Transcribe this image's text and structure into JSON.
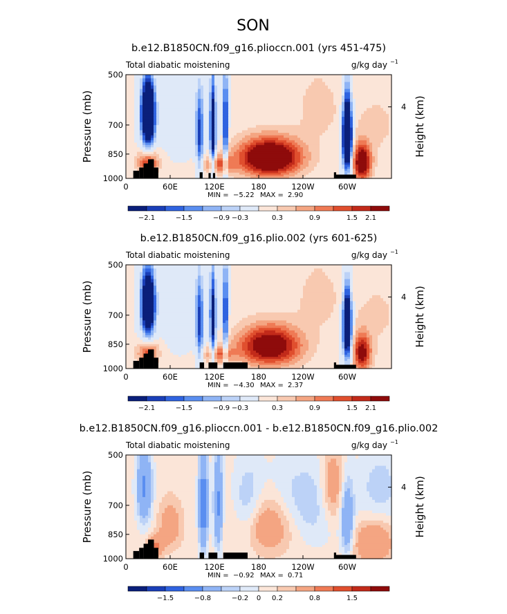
{
  "page_title": "SON",
  "colors": {
    "palette": [
      "#0a1f7a",
      "#1a3fb8",
      "#2f63e0",
      "#5a8ef0",
      "#8fb4f5",
      "#bcd2f7",
      "#dfe9f8",
      "#fbe5d8",
      "#f8c9b0",
      "#f4a582",
      "#ef7a55",
      "#e04f2e",
      "#c22a1a",
      "#8e0b0b"
    ],
    "land": "#000000"
  },
  "chart_data": [
    {
      "type": "heatmap",
      "title": "b.e12.B1850CN.f09_g16.plioccn.001 (yrs 451-475)",
      "left_label": "Total diabatic moistening",
      "units": "g/kg day",
      "units_exp": "−1",
      "ylabel": "Pressure (mb)",
      "y2label": "Height (km)",
      "y2ticks": [
        "4"
      ],
      "xticks": [
        "0",
        "60E",
        "120E",
        "180",
        "120W",
        "60W"
      ],
      "yticks": [
        "500",
        "700",
        "850",
        "1000"
      ],
      "xlim": [
        0,
        360
      ],
      "ylim": [
        1000,
        500
      ],
      "min_label": "MIN =",
      "min_value": "−5.22",
      "max_label": "MAX =",
      "max_value": "2.90",
      "colorbar_levels": [
        "−2.1",
        "−1.5",
        "−0.9",
        "−0.3",
        "0.3",
        "0.9",
        "1.5",
        "2.1"
      ],
      "features": [
        {
          "lon": 30,
          "p": 650,
          "value": -4.8,
          "slon": 9,
          "sp": 140
        },
        {
          "lon": 30,
          "p": 900,
          "value": 1.6,
          "slon": 14,
          "sp": 70
        },
        {
          "lon": 100,
          "p": 750,
          "value": -1.8,
          "slon": 5,
          "sp": 210
        },
        {
          "lon": 118,
          "p": 720,
          "value": -2.8,
          "slon": 4,
          "sp": 230
        },
        {
          "lon": 135,
          "p": 700,
          "value": -2.6,
          "slon": 3,
          "sp": 240
        },
        {
          "lon": 125,
          "p": 910,
          "value": 1.2,
          "slon": 20,
          "sp": 55
        },
        {
          "lon": 195,
          "p": 870,
          "value": 2.9,
          "slon": 42,
          "sp": 110
        },
        {
          "lon": 300,
          "p": 750,
          "value": -5.2,
          "slon": 6,
          "sp": 180
        },
        {
          "lon": 320,
          "p": 900,
          "value": 2.4,
          "slon": 12,
          "sp": 110
        },
        {
          "lon": 80,
          "p": 650,
          "value": -0.4,
          "slon": 40,
          "sp": 180
        },
        {
          "lon": 260,
          "p": 620,
          "value": 0.4,
          "slon": 30,
          "sp": 150
        },
        {
          "lon": 340,
          "p": 700,
          "value": 0.3,
          "slon": 40,
          "sp": 200
        }
      ],
      "land": [
        {
          "lon0": 10,
          "lon1": 18,
          "p0": 950
        },
        {
          "lon0": 18,
          "lon1": 24,
          "p0": 930
        },
        {
          "lon0": 24,
          "lon1": 30,
          "p0": 905
        },
        {
          "lon0": 30,
          "lon1": 38,
          "p0": 880
        },
        {
          "lon0": 38,
          "lon1": 44,
          "p0": 930
        },
        {
          "lon0": 100,
          "lon1": 104,
          "p0": 960
        },
        {
          "lon0": 112,
          "lon1": 115,
          "p0": 965
        },
        {
          "lon0": 118,
          "lon1": 121,
          "p0": 965
        },
        {
          "lon0": 282,
          "lon1": 285,
          "p0": 960
        },
        {
          "lon0": 285,
          "lon1": 312,
          "p0": 975
        }
      ]
    },
    {
      "type": "heatmap",
      "title": "b.e12.B1850CN.f09_g16.plio.002 (yrs 601-625)",
      "left_label": "Total diabatic moistening",
      "units": "g/kg day",
      "units_exp": "−1",
      "ylabel": "Pressure (mb)",
      "y2label": "Height (km)",
      "y2ticks": [
        "4"
      ],
      "xticks": [
        "0",
        "60E",
        "120E",
        "180",
        "120W",
        "60W"
      ],
      "yticks": [
        "500",
        "700",
        "850",
        "1000"
      ],
      "xlim": [
        0,
        360
      ],
      "ylim": [
        1000,
        500
      ],
      "min_label": "MIN =",
      "min_value": "−4.30",
      "max_label": "MAX =",
      "max_value": "2.37",
      "colorbar_levels": [
        "−2.1",
        "−1.5",
        "−0.9",
        "−0.3",
        "0.3",
        "0.9",
        "1.5",
        "2.1"
      ],
      "features": [
        {
          "lon": 30,
          "p": 650,
          "value": -4.3,
          "slon": 9,
          "sp": 140
        },
        {
          "lon": 30,
          "p": 900,
          "value": 1.4,
          "slon": 14,
          "sp": 70
        },
        {
          "lon": 100,
          "p": 750,
          "value": -1.8,
          "slon": 5,
          "sp": 210
        },
        {
          "lon": 118,
          "p": 720,
          "value": -2.4,
          "slon": 4,
          "sp": 230
        },
        {
          "lon": 135,
          "p": 700,
          "value": -2.4,
          "slon": 3,
          "sp": 240
        },
        {
          "lon": 125,
          "p": 910,
          "value": 1.1,
          "slon": 20,
          "sp": 55
        },
        {
          "lon": 195,
          "p": 860,
          "value": 2.4,
          "slon": 42,
          "sp": 115
        },
        {
          "lon": 300,
          "p": 750,
          "value": -4.0,
          "slon": 6,
          "sp": 180
        },
        {
          "lon": 320,
          "p": 900,
          "value": 2.0,
          "slon": 12,
          "sp": 110
        },
        {
          "lon": 80,
          "p": 650,
          "value": -0.5,
          "slon": 40,
          "sp": 180
        },
        {
          "lon": 260,
          "p": 620,
          "value": 0.4,
          "slon": 30,
          "sp": 150
        },
        {
          "lon": 340,
          "p": 700,
          "value": 0.3,
          "slon": 40,
          "sp": 200
        }
      ],
      "land": [
        {
          "lon0": 10,
          "lon1": 18,
          "p0": 950
        },
        {
          "lon0": 18,
          "lon1": 24,
          "p0": 930
        },
        {
          "lon0": 24,
          "lon1": 30,
          "p0": 905
        },
        {
          "lon0": 30,
          "lon1": 38,
          "p0": 880
        },
        {
          "lon0": 38,
          "lon1": 44,
          "p0": 930
        },
        {
          "lon0": 100,
          "lon1": 106,
          "p0": 960
        },
        {
          "lon0": 112,
          "lon1": 124,
          "p0": 960
        },
        {
          "lon0": 132,
          "lon1": 165,
          "p0": 960
        },
        {
          "lon0": 282,
          "lon1": 285,
          "p0": 960
        },
        {
          "lon0": 285,
          "lon1": 312,
          "p0": 975
        }
      ]
    },
    {
      "type": "heatmap",
      "title": "b.e12.B1850CN.f09_g16.plioccn.001 - b.e12.B1850CN.f09_g16.plio.002",
      "left_label": "Total diabatic moistening",
      "units": "g/kg day",
      "units_exp": "−1",
      "ylabel": "Pressure (mb)",
      "y2label": "Height (km)",
      "y2ticks": [
        "4"
      ],
      "xticks": [
        "0",
        "60E",
        "120E",
        "180",
        "120W",
        "60W"
      ],
      "yticks": [
        "500",
        "700",
        "850",
        "1000"
      ],
      "xlim": [
        0,
        360
      ],
      "ylim": [
        1000,
        500
      ],
      "min_label": "MIN =",
      "min_value": "−0.92",
      "max_label": "MAX =",
      "max_value": "0.71",
      "colorbar_levels": [
        "−1.5",
        "−0.8",
        "−0.2",
        "0",
        "0.2",
        "0.8",
        "1.5"
      ],
      "features": [
        {
          "lon": 25,
          "p": 620,
          "value": -0.6,
          "slon": 10,
          "sp": 150
        },
        {
          "lon": 60,
          "p": 800,
          "value": 0.3,
          "slon": 15,
          "sp": 120
        },
        {
          "lon": 105,
          "p": 700,
          "value": -0.8,
          "slon": 6,
          "sp": 220
        },
        {
          "lon": 125,
          "p": 700,
          "value": -0.6,
          "slon": 6,
          "sp": 220
        },
        {
          "lon": 165,
          "p": 720,
          "value": -0.3,
          "slon": 20,
          "sp": 200
        },
        {
          "lon": 190,
          "p": 800,
          "value": 0.4,
          "slon": 40,
          "sp": 150
        },
        {
          "lon": 240,
          "p": 700,
          "value": -0.25,
          "slon": 50,
          "sp": 200
        },
        {
          "lon": 280,
          "p": 620,
          "value": 0.35,
          "slon": 15,
          "sp": 150
        },
        {
          "lon": 300,
          "p": 780,
          "value": -0.5,
          "slon": 8,
          "sp": 180
        },
        {
          "lon": 335,
          "p": 900,
          "value": 0.4,
          "slon": 25,
          "sp": 120
        },
        {
          "lon": 345,
          "p": 620,
          "value": -0.2,
          "slon": 30,
          "sp": 150
        },
        {
          "lon": 40,
          "p": 920,
          "value": 0.5,
          "slon": 10,
          "sp": 60
        }
      ],
      "land": [
        {
          "lon0": 10,
          "lon1": 18,
          "p0": 950
        },
        {
          "lon0": 18,
          "lon1": 24,
          "p0": 930
        },
        {
          "lon0": 24,
          "lon1": 30,
          "p0": 905
        },
        {
          "lon0": 30,
          "lon1": 38,
          "p0": 880
        },
        {
          "lon0": 38,
          "lon1": 44,
          "p0": 930
        },
        {
          "lon0": 100,
          "lon1": 106,
          "p0": 960
        },
        {
          "lon0": 112,
          "lon1": 124,
          "p0": 960
        },
        {
          "lon0": 132,
          "lon1": 165,
          "p0": 960
        },
        {
          "lon0": 282,
          "lon1": 285,
          "p0": 960
        },
        {
          "lon0": 285,
          "lon1": 312,
          "p0": 975
        }
      ]
    }
  ]
}
